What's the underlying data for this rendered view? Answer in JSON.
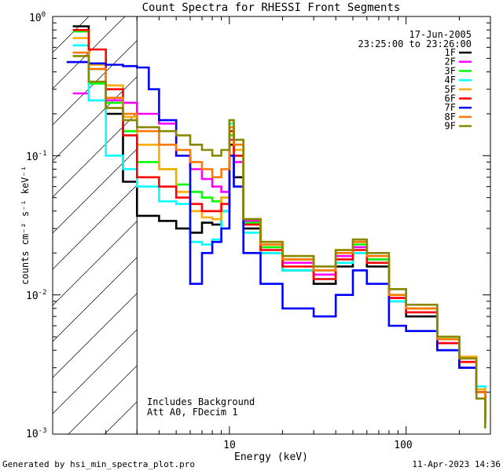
{
  "chart_data": {
    "type": "line",
    "title": "Count Spectra for RHESSI Front Segments",
    "xlabel": "Energy (keV)",
    "ylabel": "counts cm⁻² s⁻¹ keV⁻¹",
    "xscale": "log",
    "yscale": "log",
    "xlim": [
      1,
      300
    ],
    "ylim": [
      0.001,
      1
    ],
    "x_tick_labels": [
      {
        "value": 10,
        "label": "10"
      },
      {
        "value": 100,
        "label": "100"
      }
    ],
    "y_tick_labels": [
      {
        "value": 1,
        "base": "10",
        "exp": "0"
      },
      {
        "value": 0.1,
        "base": "10",
        "exp": "-1"
      },
      {
        "value": 0.01,
        "base": "10",
        "exp": "-2"
      },
      {
        "value": 0.001,
        "base": "10",
        "exp": "-3"
      }
    ],
    "shaded_region": {
      "from": 1,
      "to": 3,
      "style": "hatched"
    },
    "date": "17-Jun-2005",
    "time_range": "23:25:00 to 23:26:00",
    "annotations": [
      "Includes Background",
      "Att A0, FDecim 1"
    ],
    "footer_left": "Generated by hsi_min_spectra_plot.pro",
    "footer_right": "11-Apr-2023 14:36",
    "legend_position": "top-right",
    "series": [
      {
        "name": "1F",
        "color": "#000000",
        "points": [
          [
            1.3,
            0.85
          ],
          [
            1.6,
            0.42
          ],
          [
            2.0,
            0.2
          ],
          [
            2.5,
            0.065
          ],
          [
            3.0,
            0.037
          ],
          [
            4.0,
            0.034
          ],
          [
            5.0,
            0.03
          ],
          [
            6.0,
            0.028
          ],
          [
            7.0,
            0.033
          ],
          [
            8.0,
            0.032
          ],
          [
            9.0,
            0.04
          ],
          [
            10.0,
            0.12
          ],
          [
            10.6,
            0.07
          ],
          [
            12.0,
            0.03
          ],
          [
            15.0,
            0.02
          ],
          [
            20.0,
            0.015
          ],
          [
            30.0,
            0.012
          ],
          [
            40.0,
            0.016
          ],
          [
            50.0,
            0.02
          ],
          [
            60.0,
            0.016
          ],
          [
            80.0,
            0.009
          ],
          [
            100.0,
            0.007
          ],
          [
            150.0,
            0.004
          ],
          [
            200.0,
            0.003
          ],
          [
            250.0,
            0.002
          ],
          [
            280.0,
            0.0012
          ]
        ]
      },
      {
        "name": "2F",
        "color": "#ff00ff",
        "points": [
          [
            1.3,
            0.28
          ],
          [
            1.6,
            0.25
          ],
          [
            2.0,
            0.25
          ],
          [
            2.5,
            0.24
          ],
          [
            3.0,
            0.2
          ],
          [
            4.0,
            0.17
          ],
          [
            5.0,
            0.1
          ],
          [
            6.0,
            0.08
          ],
          [
            7.0,
            0.068
          ],
          [
            8.0,
            0.06
          ],
          [
            9.0,
            0.055
          ],
          [
            10.0,
            0.13
          ],
          [
            10.6,
            0.09
          ],
          [
            12.0,
            0.034
          ],
          [
            15.0,
            0.022
          ],
          [
            20.0,
            0.017
          ],
          [
            30.0,
            0.014
          ],
          [
            40.0,
            0.019
          ],
          [
            50.0,
            0.022
          ],
          [
            60.0,
            0.018
          ],
          [
            80.0,
            0.0095
          ],
          [
            100.0,
            0.0075
          ],
          [
            150.0,
            0.0045
          ],
          [
            200.0,
            0.0035
          ],
          [
            250.0,
            0.002
          ],
          [
            280.0,
            0.0013
          ]
        ]
      },
      {
        "name": "3F",
        "color": "#00ff00",
        "points": [
          [
            1.3,
            0.78
          ],
          [
            1.6,
            0.33
          ],
          [
            2.0,
            0.24
          ],
          [
            2.5,
            0.15
          ],
          [
            3.0,
            0.09
          ],
          [
            4.0,
            0.08
          ],
          [
            5.0,
            0.062
          ],
          [
            6.0,
            0.055
          ],
          [
            7.0,
            0.05
          ],
          [
            8.0,
            0.047
          ],
          [
            9.0,
            0.05
          ],
          [
            10.0,
            0.14
          ],
          [
            10.6,
            0.1
          ],
          [
            12.0,
            0.033
          ],
          [
            15.0,
            0.022
          ],
          [
            20.0,
            0.018
          ],
          [
            30.0,
            0.015
          ],
          [
            40.0,
            0.02
          ],
          [
            50.0,
            0.023
          ],
          [
            60.0,
            0.018
          ],
          [
            80.0,
            0.01
          ],
          [
            100.0,
            0.008
          ],
          [
            150.0,
            0.005
          ],
          [
            200.0,
            0.0036
          ],
          [
            250.0,
            0.002
          ],
          [
            280.0,
            0.0013
          ]
        ]
      },
      {
        "name": "4F",
        "color": "#00ffff",
        "points": [
          [
            1.3,
            0.62
          ],
          [
            1.6,
            0.25
          ],
          [
            2.0,
            0.1
          ],
          [
            2.5,
            0.08
          ],
          [
            3.0,
            0.06
          ],
          [
            4.0,
            0.047
          ],
          [
            5.0,
            0.045
          ],
          [
            6.0,
            0.024
          ],
          [
            7.0,
            0.023
          ],
          [
            8.0,
            0.025
          ],
          [
            9.0,
            0.04
          ],
          [
            10.0,
            0.17
          ],
          [
            10.6,
            0.1
          ],
          [
            12.0,
            0.028
          ],
          [
            15.0,
            0.02
          ],
          [
            20.0,
            0.015
          ],
          [
            30.0,
            0.013
          ],
          [
            40.0,
            0.017
          ],
          [
            50.0,
            0.02
          ],
          [
            60.0,
            0.017
          ],
          [
            80.0,
            0.009
          ],
          [
            100.0,
            0.0075
          ],
          [
            150.0,
            0.0048
          ],
          [
            200.0,
            0.0035
          ],
          [
            250.0,
            0.0022
          ],
          [
            280.0,
            0.0013
          ]
        ]
      },
      {
        "name": "5F",
        "color": "#ffaa00",
        "points": [
          [
            1.3,
            0.7
          ],
          [
            1.6,
            0.45
          ],
          [
            2.0,
            0.32
          ],
          [
            2.5,
            0.19
          ],
          [
            3.0,
            0.12
          ],
          [
            4.0,
            0.08
          ],
          [
            5.0,
            0.055
          ],
          [
            6.0,
            0.04
          ],
          [
            7.0,
            0.036
          ],
          [
            8.0,
            0.035
          ],
          [
            9.0,
            0.05
          ],
          [
            10.0,
            0.15
          ],
          [
            10.6,
            0.11
          ],
          [
            12.0,
            0.035
          ],
          [
            15.0,
            0.024
          ],
          [
            20.0,
            0.019
          ],
          [
            30.0,
            0.016
          ],
          [
            40.0,
            0.021
          ],
          [
            50.0,
            0.024
          ],
          [
            60.0,
            0.019
          ],
          [
            80.0,
            0.011
          ],
          [
            100.0,
            0.008
          ],
          [
            150.0,
            0.005
          ],
          [
            200.0,
            0.0036
          ],
          [
            250.0,
            0.0021
          ],
          [
            280.0,
            0.0014
          ]
        ]
      },
      {
        "name": "6F",
        "color": "#ff0000",
        "points": [
          [
            1.3,
            0.8
          ],
          [
            1.6,
            0.58
          ],
          [
            2.0,
            0.3
          ],
          [
            2.5,
            0.14
          ],
          [
            3.0,
            0.07
          ],
          [
            4.0,
            0.06
          ],
          [
            5.0,
            0.05
          ],
          [
            6.0,
            0.045
          ],
          [
            7.0,
            0.04
          ],
          [
            8.0,
            0.04
          ],
          [
            9.0,
            0.045
          ],
          [
            10.0,
            0.15
          ],
          [
            10.6,
            0.1
          ],
          [
            12.0,
            0.032
          ],
          [
            15.0,
            0.021
          ],
          [
            20.0,
            0.016
          ],
          [
            30.0,
            0.013
          ],
          [
            40.0,
            0.018
          ],
          [
            50.0,
            0.021
          ],
          [
            60.0,
            0.017
          ],
          [
            80.0,
            0.0095
          ],
          [
            100.0,
            0.0075
          ],
          [
            150.0,
            0.0045
          ],
          [
            200.0,
            0.0033
          ],
          [
            250.0,
            0.002
          ],
          [
            280.0,
            0.0013
          ]
        ]
      },
      {
        "name": "7F",
        "color": "#0000ff",
        "points": [
          [
            1.2,
            0.47
          ],
          [
            1.6,
            0.46
          ],
          [
            2.0,
            0.45
          ],
          [
            2.5,
            0.44
          ],
          [
            3.0,
            0.43
          ],
          [
            3.5,
            0.3
          ],
          [
            4.0,
            0.18
          ],
          [
            5.0,
            0.1
          ],
          [
            6.0,
            0.012
          ],
          [
            7.0,
            0.02
          ],
          [
            8.0,
            0.024
          ],
          [
            9.0,
            0.03
          ],
          [
            10.0,
            0.1
          ],
          [
            10.6,
            0.06
          ],
          [
            12.0,
            0.02
          ],
          [
            15.0,
            0.012
          ],
          [
            20.0,
            0.008
          ],
          [
            30.0,
            0.007
          ],
          [
            40.0,
            0.01
          ],
          [
            50.0,
            0.015
          ],
          [
            60.0,
            0.012
          ],
          [
            80.0,
            0.006
          ],
          [
            100.0,
            0.0055
          ],
          [
            150.0,
            0.004
          ],
          [
            200.0,
            0.003
          ],
          [
            250.0,
            0.002
          ],
          [
            280.0,
            0.0012
          ]
        ]
      },
      {
        "name": "8F",
        "color": "#ff7700",
        "points": [
          [
            1.3,
            0.55
          ],
          [
            1.6,
            0.42
          ],
          [
            2.0,
            0.26
          ],
          [
            2.5,
            0.2
          ],
          [
            3.0,
            0.15
          ],
          [
            4.0,
            0.12
          ],
          [
            5.0,
            0.11
          ],
          [
            6.0,
            0.09
          ],
          [
            7.0,
            0.08
          ],
          [
            8.0,
            0.07
          ],
          [
            9.0,
            0.08
          ],
          [
            10.0,
            0.16
          ],
          [
            10.6,
            0.12
          ],
          [
            12.0,
            0.035
          ],
          [
            15.0,
            0.023
          ],
          [
            20.0,
            0.018
          ],
          [
            30.0,
            0.015
          ],
          [
            40.0,
            0.02
          ],
          [
            50.0,
            0.024
          ],
          [
            60.0,
            0.019
          ],
          [
            80.0,
            0.01
          ],
          [
            100.0,
            0.008
          ],
          [
            150.0,
            0.0048
          ],
          [
            200.0,
            0.0035
          ],
          [
            250.0,
            0.002
          ],
          [
            280.0,
            0.0012
          ]
        ]
      },
      {
        "name": "9F",
        "color": "#888800",
        "points": [
          [
            1.3,
            0.52
          ],
          [
            1.6,
            0.34
          ],
          [
            2.0,
            0.22
          ],
          [
            2.5,
            0.18
          ],
          [
            3.0,
            0.16
          ],
          [
            4.0,
            0.15
          ],
          [
            5.0,
            0.14
          ],
          [
            6.0,
            0.12
          ],
          [
            7.0,
            0.11
          ],
          [
            8.0,
            0.1
          ],
          [
            9.0,
            0.11
          ],
          [
            10.0,
            0.18
          ],
          [
            10.6,
            0.13
          ],
          [
            12.0,
            0.035
          ],
          [
            15.0,
            0.024
          ],
          [
            20.0,
            0.019
          ],
          [
            30.0,
            0.016
          ],
          [
            40.0,
            0.021
          ],
          [
            50.0,
            0.025
          ],
          [
            60.0,
            0.02
          ],
          [
            80.0,
            0.011
          ],
          [
            100.0,
            0.0085
          ],
          [
            150.0,
            0.005
          ],
          [
            200.0,
            0.0035
          ],
          [
            250.0,
            0.0018
          ],
          [
            280.0,
            0.0011
          ]
        ]
      }
    ]
  }
}
